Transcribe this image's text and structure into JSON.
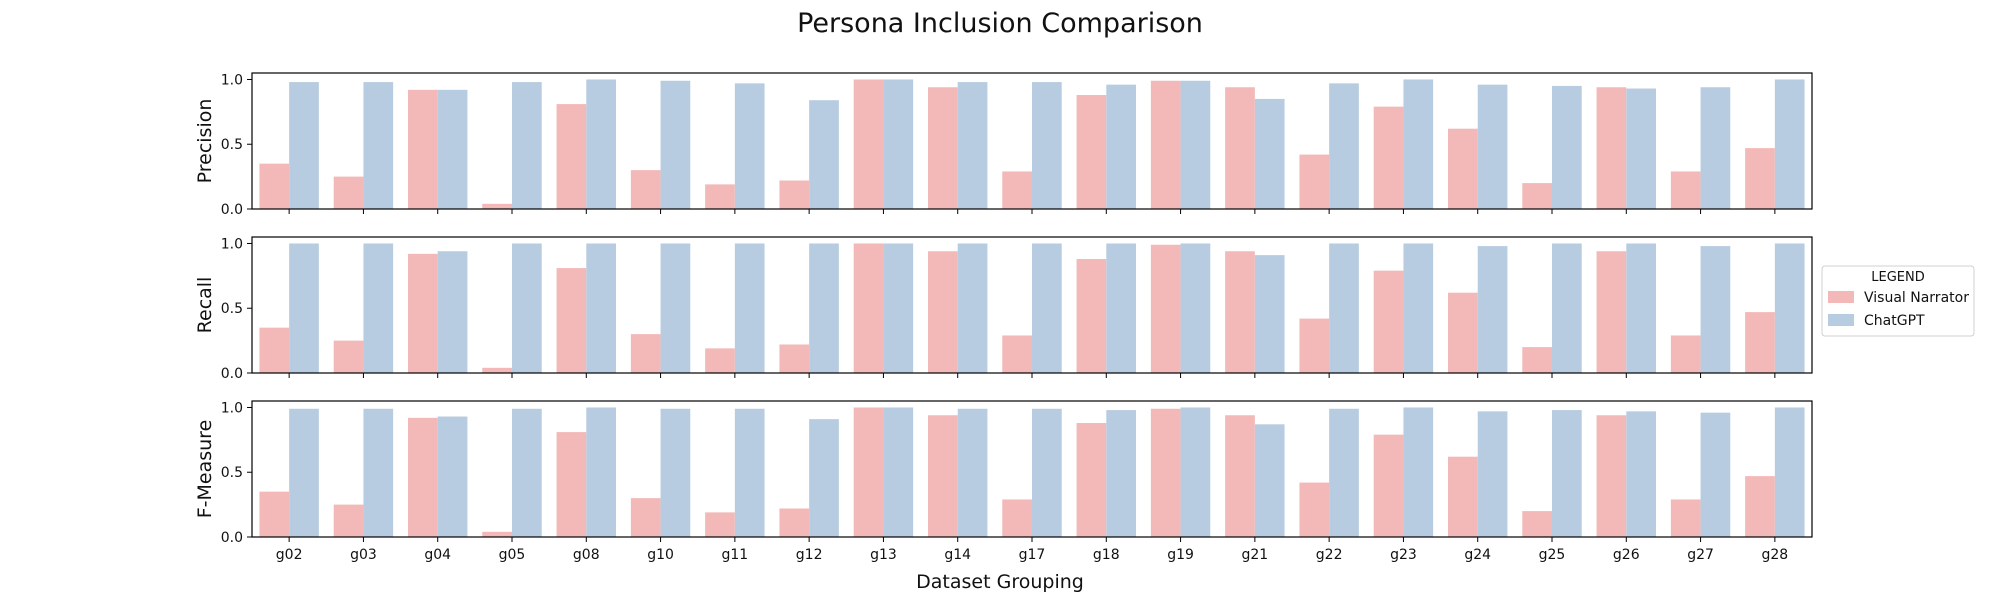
{
  "figure": {
    "title": "Persona Inclusion Comparison",
    "xlabel": "Dataset Grouping"
  },
  "legend": {
    "title": "LEGEND",
    "placement": "right-center",
    "entries": [
      {
        "label": "Visual Narrator",
        "color": "#f2b9b8"
      },
      {
        "label": "ChatGPT",
        "color": "#b7cce0"
      }
    ]
  },
  "chart_data": [
    {
      "type": "bar",
      "ylabel": "Precision",
      "ylim": [
        0,
        1.05
      ],
      "yticks": [
        "0.0",
        "0.5",
        "1.0"
      ],
      "categories": [
        "g02",
        "g03",
        "g04",
        "g05",
        "g08",
        "g10",
        "g11",
        "g12",
        "g13",
        "g14",
        "g17",
        "g18",
        "g19",
        "g21",
        "g22",
        "g23",
        "g24",
        "g25",
        "g26",
        "g27",
        "g28"
      ],
      "series": [
        {
          "name": "Visual Narrator",
          "color": "#f2b9b8",
          "values": [
            0.35,
            0.25,
            0.92,
            0.04,
            0.81,
            0.3,
            0.19,
            0.22,
            1.0,
            0.94,
            0.29,
            0.88,
            0.99,
            0.94,
            0.42,
            0.79,
            0.62,
            0.2,
            0.94,
            0.29,
            0.47
          ]
        },
        {
          "name": "ChatGPT",
          "color": "#b7cce0",
          "values": [
            0.98,
            0.98,
            0.92,
            0.98,
            1.0,
            0.99,
            0.97,
            0.84,
            1.0,
            0.98,
            0.98,
            0.96,
            0.99,
            0.85,
            0.97,
            1.0,
            0.96,
            0.95,
            0.93,
            0.94,
            1.0
          ]
        }
      ]
    },
    {
      "type": "bar",
      "ylabel": "Recall",
      "ylim": [
        0,
        1.05
      ],
      "yticks": [
        "0.0",
        "0.5",
        "1.0"
      ],
      "categories": [
        "g02",
        "g03",
        "g04",
        "g05",
        "g08",
        "g10",
        "g11",
        "g12",
        "g13",
        "g14",
        "g17",
        "g18",
        "g19",
        "g21",
        "g22",
        "g23",
        "g24",
        "g25",
        "g26",
        "g27",
        "g28"
      ],
      "series": [
        {
          "name": "Visual Narrator",
          "color": "#f2b9b8",
          "values": [
            0.35,
            0.25,
            0.92,
            0.04,
            0.81,
            0.3,
            0.19,
            0.22,
            1.0,
            0.94,
            0.29,
            0.88,
            0.99,
            0.94,
            0.42,
            0.79,
            0.62,
            0.2,
            0.94,
            0.29,
            0.47
          ]
        },
        {
          "name": "ChatGPT",
          "color": "#b7cce0",
          "values": [
            1.0,
            1.0,
            0.94,
            1.0,
            1.0,
            1.0,
            1.0,
            1.0,
            1.0,
            1.0,
            1.0,
            1.0,
            1.0,
            0.91,
            1.0,
            1.0,
            0.98,
            1.0,
            1.0,
            0.98,
            1.0
          ]
        }
      ]
    },
    {
      "type": "bar",
      "ylabel": "F-Measure",
      "ylim": [
        0,
        1.05
      ],
      "yticks": [
        "0.0",
        "0.5",
        "1.0"
      ],
      "categories": [
        "g02",
        "g03",
        "g04",
        "g05",
        "g08",
        "g10",
        "g11",
        "g12",
        "g13",
        "g14",
        "g17",
        "g18",
        "g19",
        "g21",
        "g22",
        "g23",
        "g24",
        "g25",
        "g26",
        "g27",
        "g28"
      ],
      "series": [
        {
          "name": "Visual Narrator",
          "color": "#f2b9b8",
          "values": [
            0.35,
            0.25,
            0.92,
            0.04,
            0.81,
            0.3,
            0.19,
            0.22,
            1.0,
            0.94,
            0.29,
            0.88,
            0.99,
            0.94,
            0.42,
            0.79,
            0.62,
            0.2,
            0.94,
            0.29,
            0.47
          ]
        },
        {
          "name": "ChatGPT",
          "color": "#b7cce0",
          "values": [
            0.99,
            0.99,
            0.93,
            0.99,
            1.0,
            0.99,
            0.99,
            0.91,
            1.0,
            0.99,
            0.99,
            0.98,
            1.0,
            0.87,
            0.99,
            1.0,
            0.97,
            0.98,
            0.97,
            0.96,
            1.0
          ]
        }
      ]
    }
  ]
}
